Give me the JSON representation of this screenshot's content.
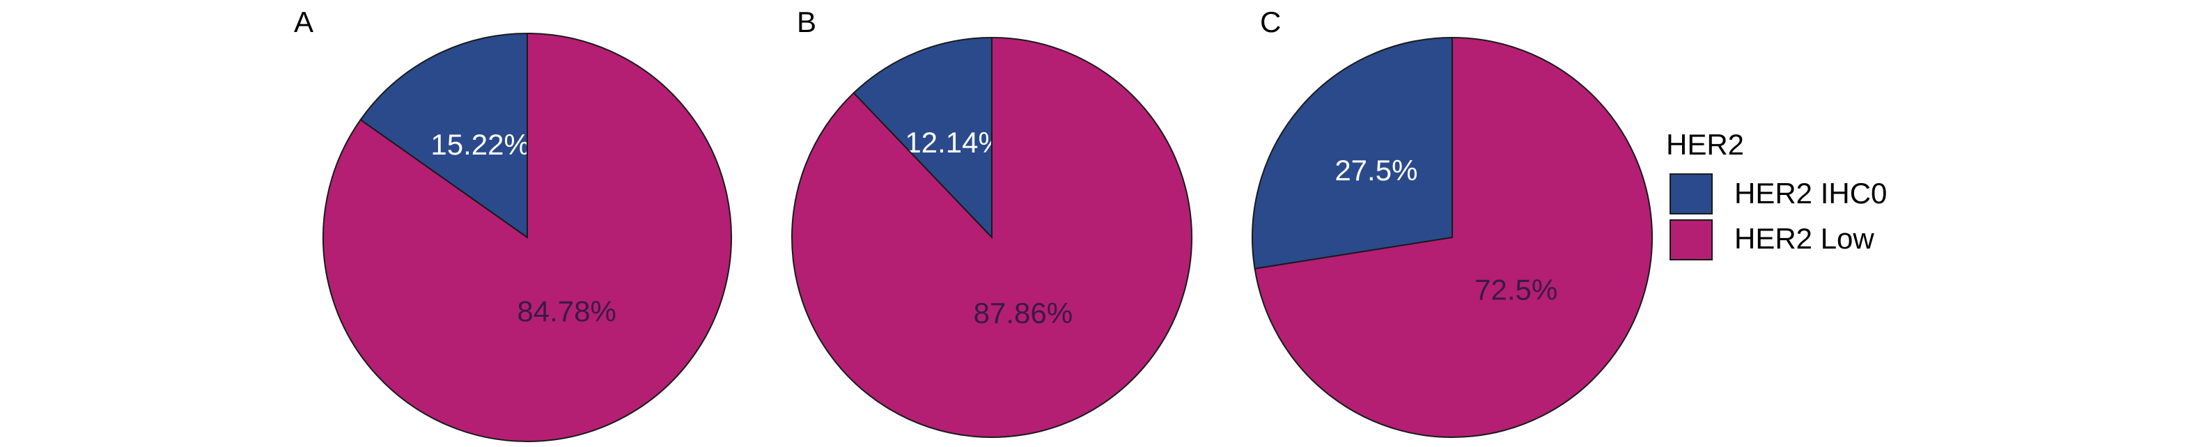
{
  "colors": {
    "HER2 IHC0": "#2A4A8C",
    "HER2 Low": "#B41F73",
    "slice_outline": "#1a1a1a",
    "label_on_dark": "#ffffff",
    "label_on_pink": "#3a1a44"
  },
  "legend": {
    "title": "HER2",
    "items": [
      "HER2 IHC0",
      "HER2 Low"
    ]
  },
  "chart_data": [
    {
      "type": "pie",
      "panel": "A",
      "start": "12 o'clock",
      "direction": "counterclockwise",
      "slices": [
        {
          "name": "HER2 IHC0",
          "value": 15.22,
          "label": "15.22%"
        },
        {
          "name": "HER2 Low",
          "value": 84.78,
          "label": "84.78%"
        }
      ]
    },
    {
      "type": "pie",
      "panel": "B",
      "start": "12 o'clock",
      "direction": "counterclockwise",
      "slices": [
        {
          "name": "HER2 IHC0",
          "value": 12.14,
          "label": "12.14%"
        },
        {
          "name": "HER2 Low",
          "value": 87.86,
          "label": "87.86%"
        }
      ]
    },
    {
      "type": "pie",
      "panel": "C",
      "start": "12 o'clock",
      "direction": "counterclockwise",
      "slices": [
        {
          "name": "HER2 IHC0",
          "value": 27.5,
          "label": "27.5%"
        },
        {
          "name": "HER2 Low",
          "value": 72.5,
          "label": "72.5%"
        }
      ]
    }
  ]
}
